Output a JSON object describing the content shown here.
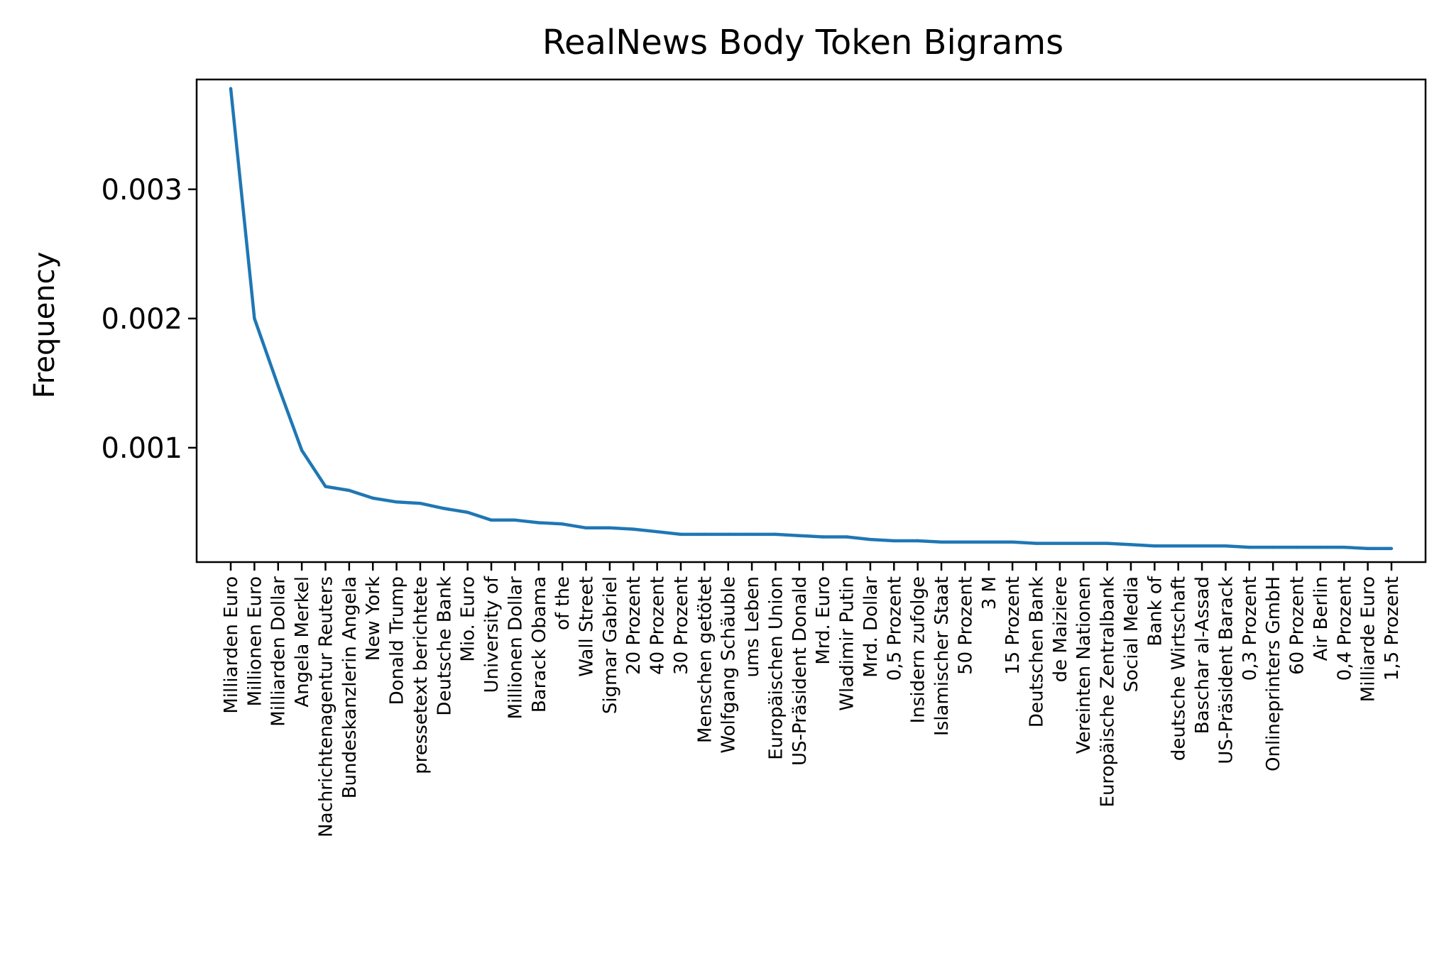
{
  "chart_data": {
    "type": "line",
    "title": "RealNews Body Token Bigrams",
    "xlabel": "",
    "ylabel": "Frequency",
    "ylim": [
      0.000115,
      0.00385
    ],
    "yticks": [
      0.001,
      0.002,
      0.003
    ],
    "ytick_labels": [
      "0.001",
      "0.002",
      "0.003"
    ],
    "grid": false,
    "legend": "none",
    "line_color": "#1f77b4",
    "categories": [
      "Milliarden Euro",
      "Millionen Euro",
      "Milliarden Dollar",
      "Angela Merkel",
      "Nachrichtenagentur Reuters",
      "Bundeskanzlerin Angela",
      "New York",
      "Donald Trump",
      "pressetext berichtete",
      "Deutsche Bank",
      "Mio. Euro",
      "University of",
      "Millionen Dollar",
      "Barack Obama",
      "of the",
      "Wall Street",
      "Sigmar Gabriel",
      "20 Prozent",
      "40 Prozent",
      "30 Prozent",
      "Menschen getötet",
      "Wolfgang Schäuble",
      "ums Leben",
      "Europäischen Union",
      "US-Präsident Donald",
      "Mrd. Euro",
      "Wladimir Putin",
      "Mrd. Dollar",
      "0,5 Prozent",
      "Insidern zufolge",
      "Islamischer Staat",
      "50 Prozent",
      "3 M",
      "15 Prozent",
      "Deutschen Bank",
      "de Maiziere",
      "Vereinten Nationen",
      "Europäische Zentralbank",
      "Social Media",
      "Bank of",
      "deutsche Wirtschaft",
      "Baschar al-Assad",
      "US-Präsident Barack",
      "0,3 Prozent",
      "Onlineprinters GmbH",
      "60 Prozent",
      "Air Berlin",
      "0,4 Prozent",
      "Milliarde Euro",
      "1,5 Prozent"
    ],
    "values": [
      0.00378,
      0.002,
      0.00148,
      0.00098,
      0.0007,
      0.00067,
      0.00061,
      0.00058,
      0.00057,
      0.00053,
      0.0005,
      0.00044,
      0.00044,
      0.00042,
      0.00041,
      0.00038,
      0.00038,
      0.00037,
      0.00035,
      0.00033,
      0.00033,
      0.00033,
      0.00033,
      0.00033,
      0.00032,
      0.00031,
      0.00031,
      0.00029,
      0.00028,
      0.00028,
      0.00027,
      0.00027,
      0.00027,
      0.00027,
      0.00026,
      0.00026,
      0.00026,
      0.00026,
      0.00025,
      0.00024,
      0.00024,
      0.00024,
      0.00024,
      0.00023,
      0.00023,
      0.00023,
      0.00023,
      0.00023,
      0.00022,
      0.00022
    ]
  }
}
